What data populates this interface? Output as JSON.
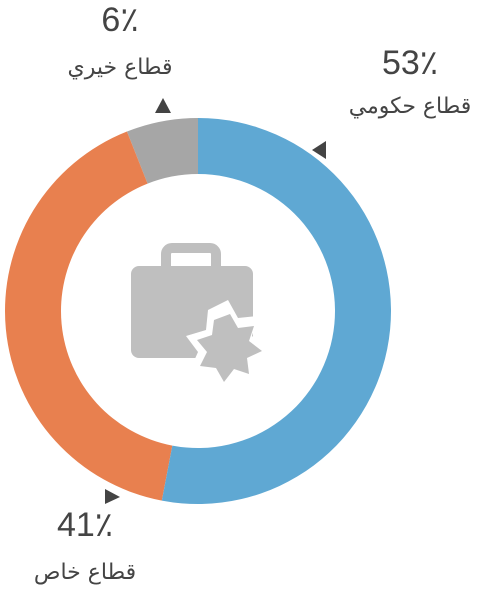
{
  "chart_data": {
    "type": "donut",
    "categories": [
      "قطاع حكومي",
      "قطاع خاص",
      "قطاع خيري"
    ],
    "values": [
      53,
      41,
      6
    ],
    "value_labels": [
      "53٪",
      "41٪",
      "6٪"
    ],
    "colors": [
      "#5fa8d3",
      "#e8804f",
      "#a6a6a6"
    ]
  }
}
